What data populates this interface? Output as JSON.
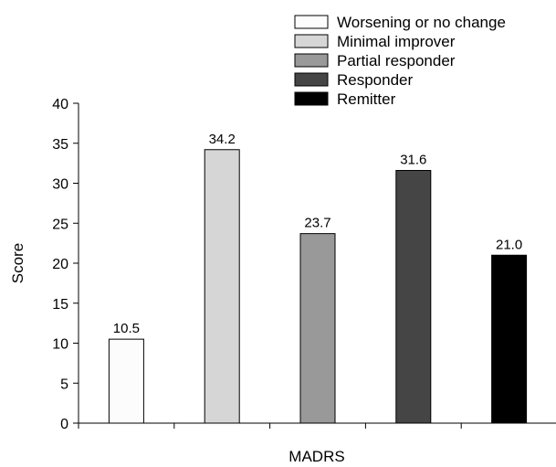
{
  "chart_data": {
    "type": "bar",
    "xlabel": "MADRS",
    "ylabel": "Score",
    "ylim": [
      0,
      40
    ],
    "yticks": [
      0,
      5,
      10,
      15,
      20,
      25,
      30,
      35,
      40
    ],
    "grid": false,
    "legend_position": "top-right",
    "bars": [
      {
        "name": "Worsening or no change",
        "value": 10.5,
        "label": "10.5",
        "color": "#fcfcfc"
      },
      {
        "name": "Minimal improver",
        "value": 34.2,
        "label": "34.2",
        "color": "#d6d6d6"
      },
      {
        "name": "Partial responder",
        "value": 23.7,
        "label": "23.7",
        "color": "#999999"
      },
      {
        "name": "Responder",
        "value": 31.6,
        "label": "31.6",
        "color": "#454545"
      },
      {
        "name": "Remitter",
        "value": 21.0,
        "label": "21.0",
        "color": "#000000"
      }
    ]
  }
}
